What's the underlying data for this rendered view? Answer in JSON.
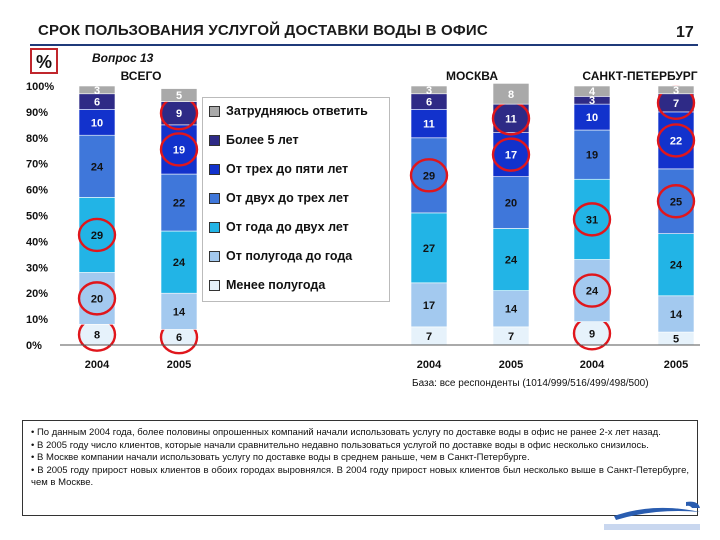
{
  "header": {
    "title": "СРОК ПОЛЬЗОВАНИЯ УСЛУГОЙ ДОСТАВКИ ВОДЫ В ОФИС",
    "page_number": "17",
    "unit_symbol": "%",
    "question": "Вопрос 13"
  },
  "base_note": "База: все респонденты (1014/999/516/499/498/500)",
  "notes": [
    "• По данным 2004 года, более половины опрошенных компаний начали использовать услугу по доставке воды в офис не ранее 2-х лет назад.",
    "• В 2005 году число клиентов, которые начали сравнительно недавно пользоваться услугой по доставке воды в офис несколько снизилось.",
    "• В Москве компании начали использовать услугу по доставке воды в среднем раньше, чем в Санкт-Петербурге.",
    "• В 2005 году прирост новых клиентов в обоих городах выровнялся. В 2004 году прирост новых клиентов был несколько выше в Санкт-Петербурге, чем в Москве."
  ],
  "chart_data": {
    "type": "bar",
    "stacked": true,
    "groups": [
      "ВСЕГО",
      "МОСКВА",
      "САНКТ-ПЕТЕРБУРГ"
    ],
    "categories": [
      "2004",
      "2005",
      "2004",
      "2005",
      "2004",
      "2005"
    ],
    "y_ticks": [
      "0%",
      "10%",
      "20%",
      "30%",
      "40%",
      "50%",
      "60%",
      "70%",
      "80%",
      "90%",
      "100%"
    ],
    "ylim": [
      0,
      100
    ],
    "legend_position": "inside-left",
    "series": [
      {
        "name": "Менее полугода",
        "color": "#e6f2fb",
        "values": [
          8,
          6,
          7,
          7,
          9,
          5
        ]
      },
      {
        "name": "От полугода до года",
        "color": "#a3c9ef",
        "values": [
          20,
          14,
          17,
          14,
          24,
          14
        ]
      },
      {
        "name": "От года до двух лет",
        "color": "#22b4e6",
        "values": [
          29,
          24,
          27,
          24,
          31,
          24
        ]
      },
      {
        "name": "От двух до трех лет",
        "color": "#3f77da",
        "values": [
          24,
          22,
          29,
          20,
          19,
          25
        ]
      },
      {
        "name": "От трех до пяти лет",
        "color": "#1232cc",
        "values": [
          10,
          19,
          11,
          17,
          10,
          22
        ]
      },
      {
        "name": "Более 5 лет",
        "color": "#2e2a86",
        "values": [
          6,
          9,
          6,
          11,
          3,
          7
        ]
      },
      {
        "name": "Затрудняюсь ответить",
        "color": "#a9a9a9",
        "values": [
          3,
          5,
          3,
          8,
          4,
          3
        ]
      }
    ],
    "highlighted": [
      {
        "series": 0,
        "bar": 0
      },
      {
        "series": 0,
        "bar": 1
      },
      {
        "series": 0,
        "bar": 4
      },
      {
        "series": 1,
        "bar": 0
      },
      {
        "series": 1,
        "bar": 4
      },
      {
        "series": 2,
        "bar": 0
      },
      {
        "series": 2,
        "bar": 4
      },
      {
        "series": 3,
        "bar": 2
      },
      {
        "series": 4,
        "bar": 1
      },
      {
        "series": 4,
        "bar": 3
      },
      {
        "series": 4,
        "bar": 5
      },
      {
        "series": 5,
        "bar": 1
      },
      {
        "series": 5,
        "bar": 3
      },
      {
        "series": 5,
        "bar": 5
      },
      {
        "series": 3,
        "bar": 5
      }
    ]
  }
}
